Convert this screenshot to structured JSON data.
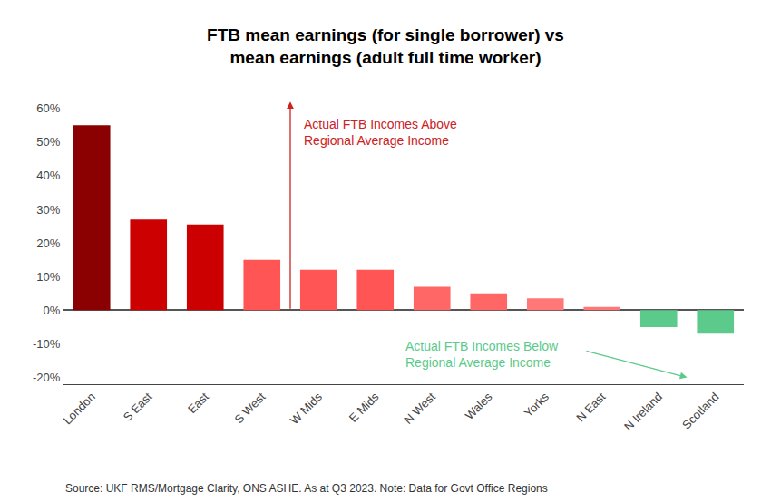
{
  "chart_data": {
    "type": "bar",
    "title": "FTB mean earnings (for single borrower) vs\nmean earnings (adult full time worker)",
    "categories": [
      "London",
      "S East",
      "East",
      "S West",
      "W Mids",
      "E Mids",
      "N West",
      "Wales",
      "Yorks",
      "N East",
      "N Ireland",
      "Scotland"
    ],
    "values": [
      55,
      27,
      25.5,
      15,
      12,
      12,
      7,
      5,
      3.5,
      1,
      -5,
      -7
    ],
    "colors": [
      "#8B0000",
      "#CC0000",
      "#CC0000",
      "#FF5555",
      "#FF5555",
      "#FF5555",
      "#FF6666",
      "#FF6666",
      "#FF7777",
      "#FF7777",
      "#5CCA8A",
      "#5CCA8A"
    ],
    "ylim": [
      -22,
      68
    ],
    "yticks": [
      {
        "value": -20,
        "label": "-20%"
      },
      {
        "value": -10,
        "label": "-10%"
      },
      {
        "value": 0,
        "label": "0%"
      },
      {
        "value": 10,
        "label": "10%"
      },
      {
        "value": 20,
        "label": "20%"
      },
      {
        "value": 30,
        "label": "30%"
      },
      {
        "value": 40,
        "label": "40%"
      },
      {
        "value": 50,
        "label": "50%"
      },
      {
        "value": 60,
        "label": "60%"
      }
    ],
    "grid": false,
    "annotations": [
      {
        "text": "Actual FTB Incomes Above\nRegional Average Income",
        "color": "#CC2222"
      },
      {
        "text": "Actual FTB Incomes Below\nRegional Average Income",
        "color": "#5CCA8A"
      },
      {
        "text": "Source: UKF RMS/Mortgage Clarity, ONS ASHE. As at Q3 2023. Note: Data for Govt Office Regions",
        "color": "#333333"
      }
    ]
  }
}
